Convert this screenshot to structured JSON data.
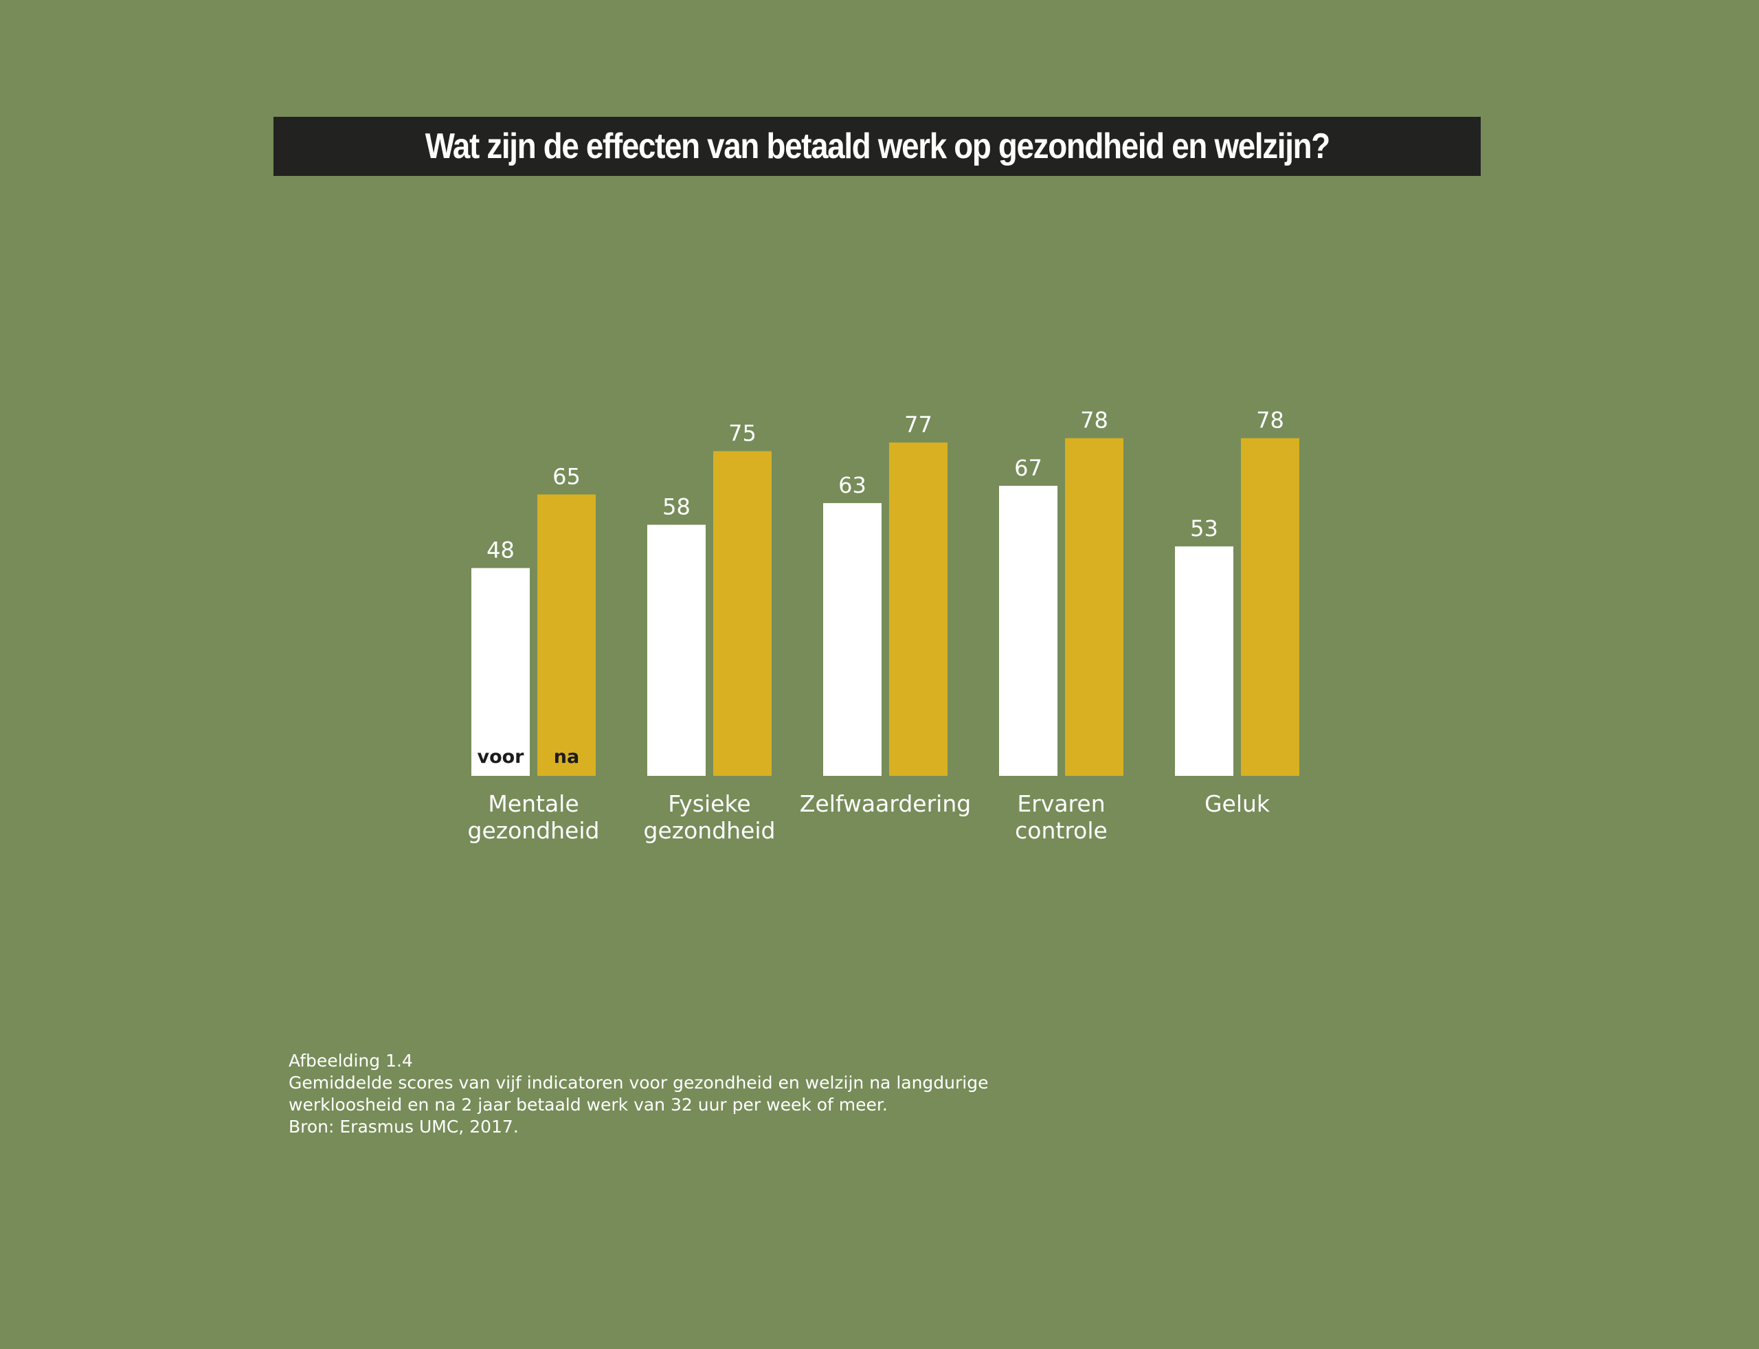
{
  "title": "Wat zijn de effecten van betaald werk op gezondheid en welzijn?",
  "colors": {
    "background": "#778c59",
    "title_bar": "#222220",
    "voor": "#ffffff",
    "na": "#d8b022"
  },
  "chart_data": {
    "type": "bar",
    "title": "Wat zijn de effecten van betaald werk op gezondheid en welzijn?",
    "categories": [
      [
        "Mentale",
        "gezondheid"
      ],
      [
        "Fysieke",
        "gezondheid"
      ],
      [
        "Zelfwaardering"
      ],
      [
        "Ervaren",
        "controle"
      ],
      [
        "Geluk"
      ]
    ],
    "series": [
      {
        "name": "voor",
        "values": [
          48,
          58,
          63,
          67,
          53
        ],
        "color": "#ffffff"
      },
      {
        "name": "na",
        "values": [
          65,
          75,
          77,
          78,
          78
        ],
        "color": "#d8b022"
      }
    ],
    "ylim": [
      0,
      100
    ],
    "grid": false,
    "legend": "inside first bars"
  },
  "caption": {
    "lines": [
      "Afbeelding 1.4",
      "Gemiddelde scores van vijf indicatoren voor gezondheid en welzijn na langdurige",
      "werkloosheid en na 2 jaar betaald werk van 32 uur per week of meer.",
      "Bron: Erasmus UMC, 2017."
    ]
  }
}
